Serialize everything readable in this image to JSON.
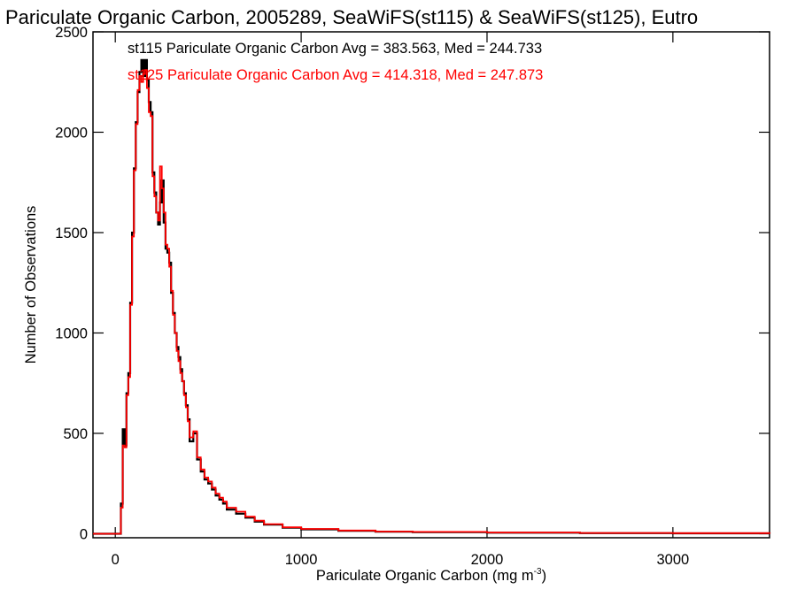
{
  "chart_data": {
    "type": "histogram",
    "title": "Pariculate Organic Carbon, 2005289, SeaWiFS(st115) & SeaWiFS(st125), Eutro",
    "xlabel": "Pariculate Organic Carbon (mg m",
    "xlabel_sup": "-3",
    "xlabel_close": ")",
    "ylabel": "Number of Observations",
    "xlim": [
      -120,
      3520
    ],
    "ylim": [
      -20,
      2500
    ],
    "xticks": [
      0,
      1000,
      2000,
      3000
    ],
    "yticks": [
      0,
      500,
      1000,
      1500,
      2000,
      2500
    ],
    "grid": false,
    "annotations": [
      {
        "text": "st115 Pariculate Organic Carbon Avg = 383.563, Med = 244.733",
        "color": "#000000"
      },
      {
        "text": "st125 Pariculate Organic Carbon Avg = 414.318, Med = 247.873",
        "color": "#ff0000"
      }
    ],
    "series": [
      {
        "name": "st115",
        "color": "#000000",
        "x": [
          -120,
          20,
          30,
          40,
          50,
          60,
          70,
          80,
          90,
          100,
          110,
          120,
          130,
          140,
          150,
          160,
          170,
          180,
          190,
          200,
          210,
          220,
          230,
          240,
          250,
          260,
          270,
          280,
          290,
          300,
          310,
          320,
          330,
          340,
          350,
          360,
          370,
          380,
          390,
          400,
          420,
          440,
          460,
          480,
          500,
          520,
          540,
          560,
          580,
          600,
          650,
          700,
          750,
          800,
          900,
          1000,
          1200,
          1400,
          1600,
          2000,
          2500,
          3000,
          3520
        ],
        "y": [
          0,
          0,
          150,
          520,
          440,
          700,
          800,
          1150,
          1500,
          1820,
          2050,
          2200,
          2300,
          2360,
          2280,
          2360,
          2260,
          2150,
          2100,
          1800,
          1700,
          1600,
          1540,
          1650,
          1760,
          1550,
          1420,
          1400,
          1350,
          1200,
          1100,
          1000,
          930,
          880,
          820,
          760,
          700,
          640,
          570,
          460,
          500,
          370,
          310,
          270,
          250,
          220,
          190,
          170,
          150,
          120,
          100,
          80,
          60,
          45,
          30,
          22,
          15,
          10,
          8,
          5,
          3,
          2,
          0
        ]
      },
      {
        "name": "st125",
        "color": "#ff0000",
        "x": [
          -120,
          20,
          30,
          40,
          50,
          60,
          70,
          80,
          90,
          100,
          110,
          120,
          130,
          140,
          150,
          160,
          170,
          180,
          190,
          200,
          210,
          220,
          230,
          240,
          250,
          260,
          270,
          280,
          290,
          300,
          310,
          320,
          330,
          340,
          350,
          360,
          370,
          380,
          390,
          400,
          420,
          440,
          460,
          480,
          500,
          520,
          540,
          560,
          580,
          600,
          650,
          700,
          750,
          800,
          900,
          1000,
          1200,
          1400,
          1600,
          2000,
          2500,
          3000,
          3520
        ],
        "y": [
          0,
          0,
          130,
          440,
          430,
          690,
          780,
          1140,
          1480,
          1810,
          2040,
          2210,
          2280,
          2250,
          2290,
          2310,
          2220,
          2100,
          2080,
          1780,
          1680,
          1600,
          1560,
          1830,
          1720,
          1600,
          1440,
          1420,
          1330,
          1210,
          1090,
          1000,
          910,
          860,
          800,
          760,
          690,
          630,
          560,
          480,
          510,
          380,
          320,
          280,
          260,
          230,
          200,
          180,
          160,
          130,
          110,
          85,
          65,
          48,
          32,
          24,
          16,
          11,
          9,
          6,
          4,
          3,
          0
        ]
      }
    ]
  }
}
